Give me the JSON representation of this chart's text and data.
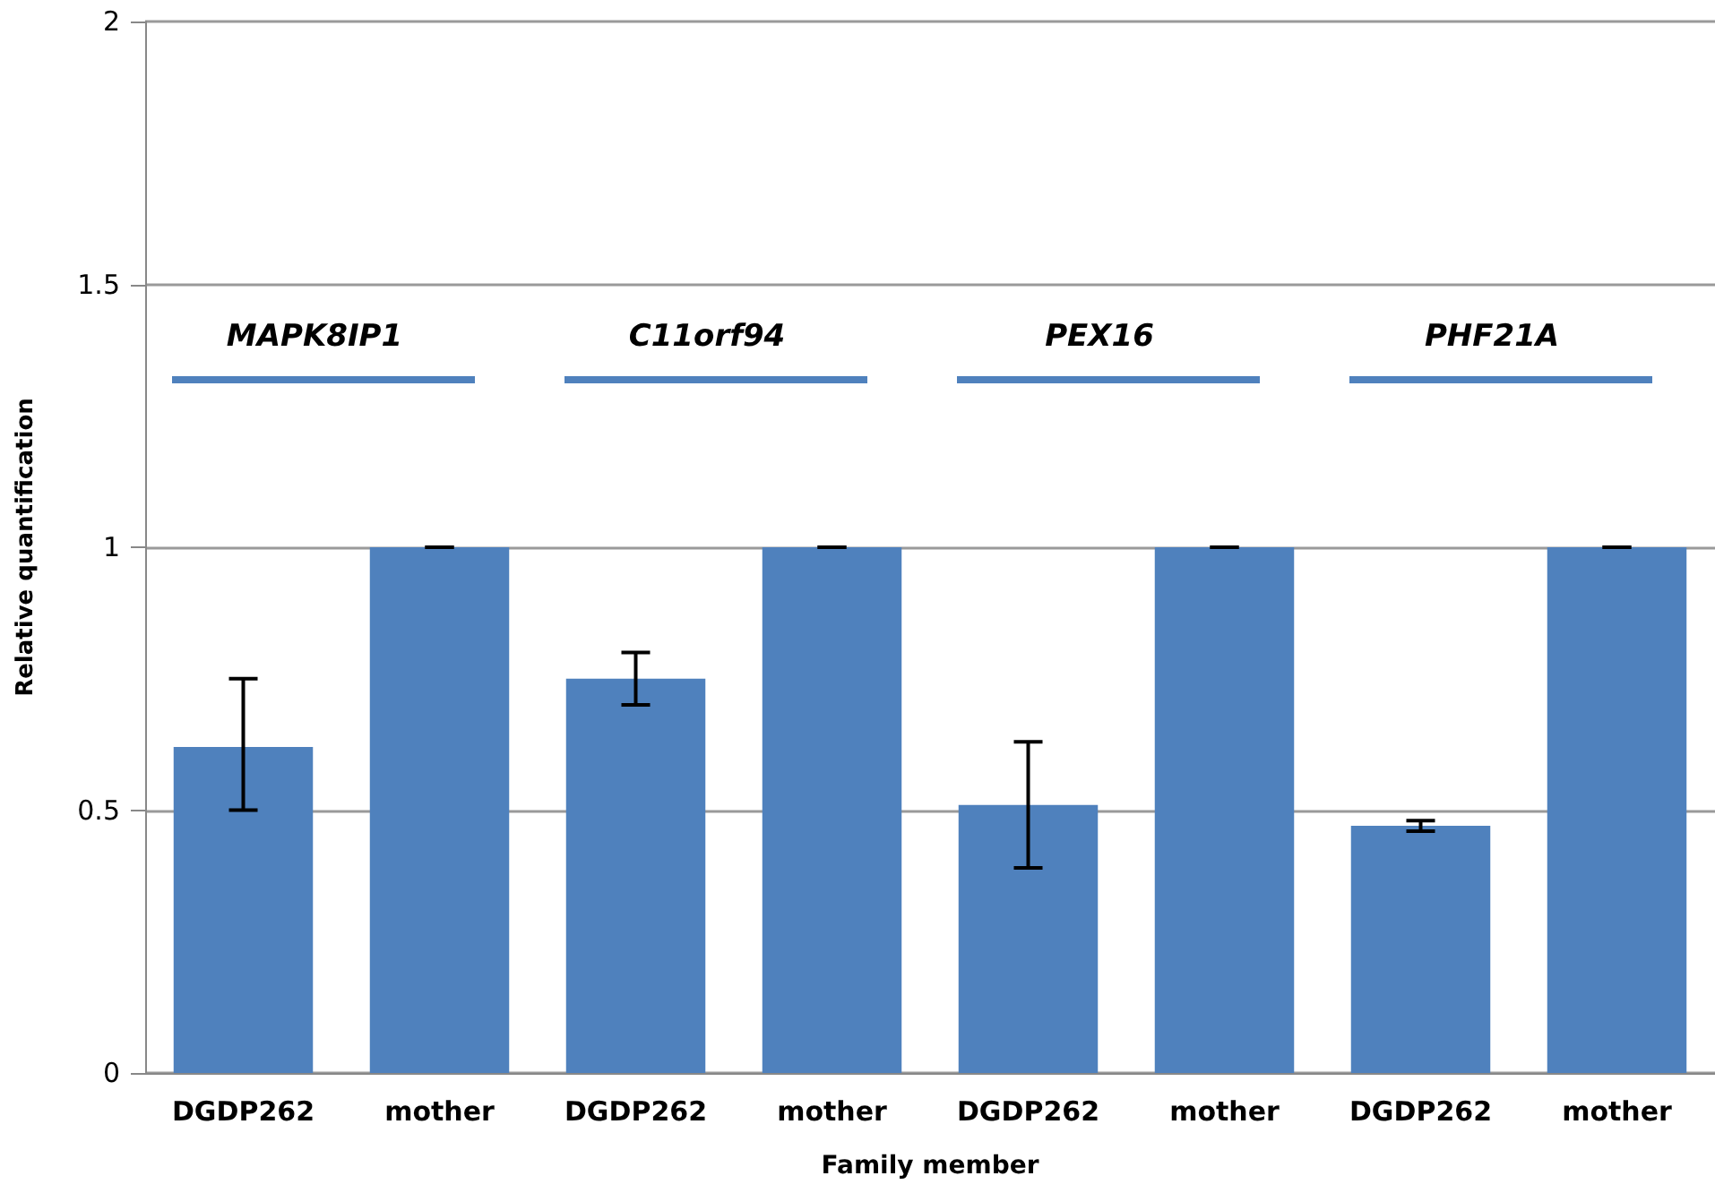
{
  "chart_data": {
    "type": "bar",
    "xlabel": "Family member",
    "ylabel": "Relative quantification",
    "categories": [
      "DGDP262",
      "mother",
      "DGDP262",
      "mother",
      "DGDP262",
      "mother",
      "DGDP262",
      "mother"
    ],
    "values": [
      0.62,
      1,
      0.75,
      1,
      0.51,
      1,
      0.47,
      1
    ],
    "errors": [
      [
        0.5,
        0.75
      ],
      0,
      [
        0.7,
        0.8
      ],
      0,
      [
        0.39,
        0.63
      ],
      0,
      [
        0.46,
        0.48
      ],
      0
    ],
    "color": "#4f81bd",
    "ylim": [
      0,
      2
    ],
    "yticks": [
      0,
      0.5,
      1,
      1.5,
      2
    ],
    "grid": "y",
    "annotations": [
      "MAPK8IP1",
      "C11orf94",
      "PEX16",
      "PHF21A"
    ]
  }
}
